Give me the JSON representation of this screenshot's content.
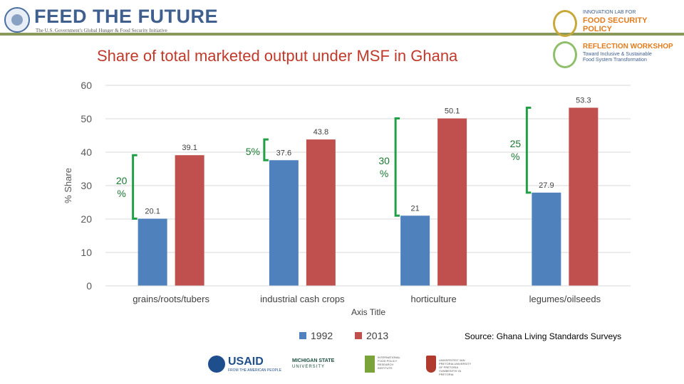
{
  "header": {
    "org_title": "FEED THE FUTURE",
    "org_subtitle": "The U.S. Government's Global Hunger & Food Security Initiative",
    "lab_line1": "INNOVATION LAB FOR",
    "lab_line2": "FOOD SECURITY",
    "lab_line3": "POLICY",
    "workshop_line1": "REFLECTION WORKSHOP",
    "workshop_line2": "Toward Inclusive & Sustainable",
    "workshop_line3": "Food System Transformation"
  },
  "slide_title": "Share of total marketed output under MSF in Ghana",
  "chart_data": {
    "type": "bar",
    "title": "Share of total marketed output under MSF in Ghana",
    "xlabel": "Axis Title",
    "ylabel": "% Share",
    "ylim": [
      0,
      60
    ],
    "yticks": [
      0,
      10,
      20,
      30,
      40,
      50,
      60
    ],
    "grid": true,
    "legend_position": "bottom",
    "categories": [
      "grains/roots/tubers",
      "industrial cash crops",
      "horticulture",
      "legumes/oilseeds"
    ],
    "series": [
      {
        "name": "1992",
        "color": "#4f81bd",
        "values": [
          20.1,
          37.6,
          21,
          27.9
        ],
        "labels": [
          "20.1",
          "37.6",
          "21",
          "27.9"
        ]
      },
      {
        "name": "2013",
        "color": "#c0504d",
        "values": [
          39.1,
          43.8,
          50.1,
          53.3
        ],
        "labels": [
          "39.1",
          "43.8",
          "50.1",
          "53.3"
        ]
      }
    ],
    "annotations": [
      {
        "category": "grains/roots/tubers",
        "text": "20 %",
        "from": 20.1,
        "to": 39.1
      },
      {
        "category": "industrial cash crops",
        "text": "5%",
        "from": 37.6,
        "to": 43.8
      },
      {
        "category": "horticulture",
        "text": "30 %",
        "from": 21,
        "to": 50.1
      },
      {
        "category": "legumes/oilseeds",
        "text": "25 %",
        "from": 27.9,
        "to": 53.3
      }
    ],
    "annotation_color": "#22a045"
  },
  "source": "Source: Ghana Living Standards Surveys",
  "footer": {
    "usaid_name": "USAID",
    "usaid_tagline": "FROM THE AMERICAN PEOPLE",
    "msu_line1": "MICHIGAN STATE",
    "msu_line2": "UNIVERSITY",
    "ifpri_text": "INTERNATIONAL FOOD POLICY RESEARCH INSTITUTE",
    "up_text": "UNIVERSITEIT VAN PRETORIA UNIVERSITY OF PRETORIA YUNIBESITHI YA PRETORIA"
  }
}
